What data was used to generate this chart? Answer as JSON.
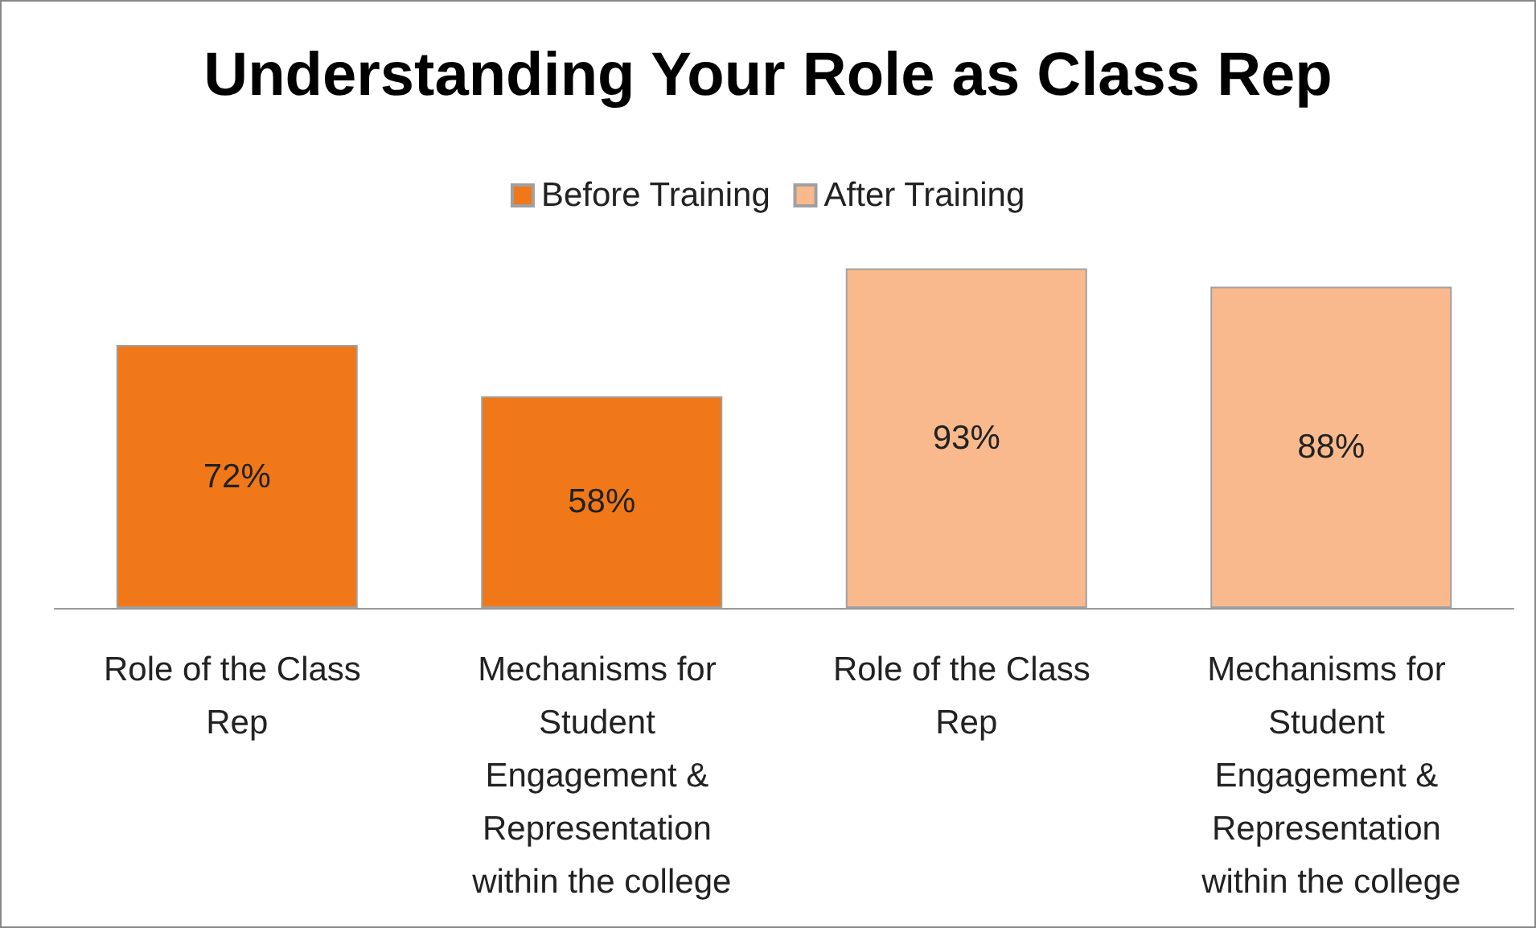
{
  "chart_data": {
    "type": "bar",
    "title": "Understanding Your Role as Class Rep",
    "categories": [
      "Role of the Class Rep",
      "Mechanisms for Student Engagement & Representation within the college",
      "Role of the Class Rep",
      "Mechanisms for Student Engagement & Representation within the college"
    ],
    "series": [
      {
        "name": "Before Training",
        "color": "#f07818",
        "values": [
          72,
          58,
          null,
          null
        ],
        "value_labels": [
          "72%",
          "58%",
          null,
          null
        ]
      },
      {
        "name": "After Training",
        "color": "#f9b98c",
        "values": [
          null,
          null,
          93,
          88
        ],
        "value_labels": [
          null,
          null,
          "93%",
          "88%"
        ]
      }
    ],
    "legend": "top"
  }
}
